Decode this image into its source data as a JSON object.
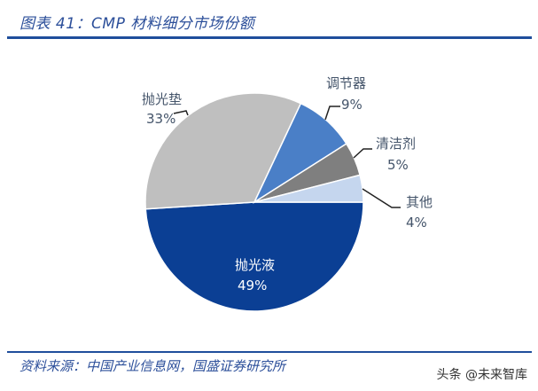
{
  "title": "图表 41：CMP 材料细分市场份额",
  "source": "资料来源：中国产业信息网，国盛证券研究所",
  "watermark": "头条 @未来智库",
  "chart_data": {
    "type": "pie",
    "title": "CMP 材料细分市场份额",
    "categories": [
      "抛光液",
      "抛光垫",
      "调节器",
      "清洁剂",
      "其他"
    ],
    "values": [
      49,
      33,
      9,
      5,
      4
    ],
    "colors": [
      "#0b3f94",
      "#bfbfbf",
      "#4a7fc7",
      "#7f7f7f",
      "#c5d6ee"
    ],
    "labels": [
      {
        "name": "抛光液",
        "pct": "49%"
      },
      {
        "name": "抛光垫",
        "pct": "33%"
      },
      {
        "name": "调节器",
        "pct": "9%"
      },
      {
        "name": "清洁剂",
        "pct": "5%"
      },
      {
        "name": "其他",
        "pct": "4%"
      }
    ],
    "legend": "none (labels with leader lines)"
  }
}
